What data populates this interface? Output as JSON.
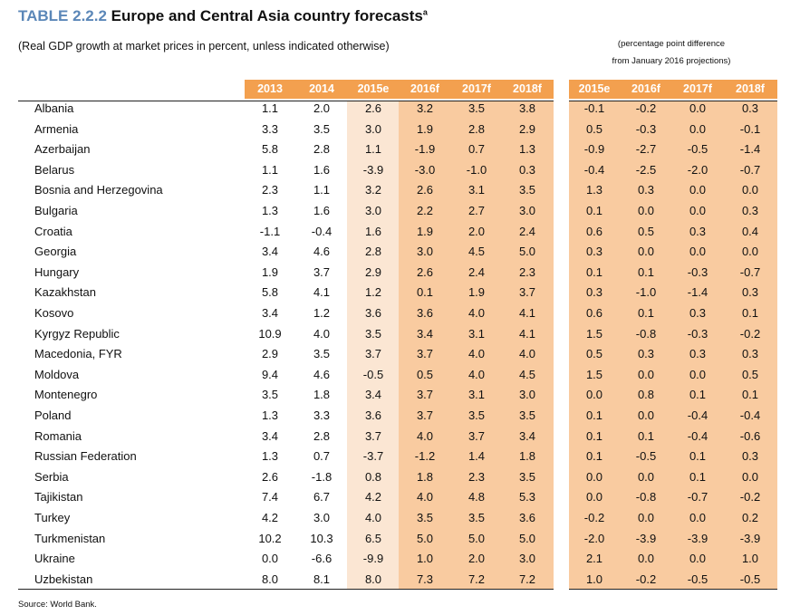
{
  "title": {
    "number": "TABLE 2.2.2",
    "text": "Europe and Central Asia country forecasts",
    "footnote_mark": "a"
  },
  "subtitle": "(Real GDP growth at market prices in percent, unless indicated otherwise)",
  "diff_note": {
    "line1": "(percentage  point difference",
    "line2": "from January 2016 projections)"
  },
  "columns": [
    "2013",
    "2014",
    "2015e",
    "2016f",
    "2017f",
    "2018f"
  ],
  "diff_columns": [
    "2015e",
    "2016f",
    "2017f",
    "2018f"
  ],
  "rows": [
    {
      "country": "Albania",
      "values": [
        "1.1",
        "2.0",
        "2.6",
        "3.2",
        "3.5",
        "3.8"
      ],
      "diffs": [
        "-0.1",
        "-0.2",
        "0.0",
        "0.3"
      ]
    },
    {
      "country": "Armenia",
      "values": [
        "3.3",
        "3.5",
        "3.0",
        "1.9",
        "2.8",
        "2.9"
      ],
      "diffs": [
        "0.5",
        "-0.3",
        "0.0",
        "-0.1"
      ]
    },
    {
      "country": "Azerbaijan",
      "values": [
        "5.8",
        "2.8",
        "1.1",
        "-1.9",
        "0.7",
        "1.3"
      ],
      "diffs": [
        "-0.9",
        "-2.7",
        "-0.5",
        "-1.4"
      ]
    },
    {
      "country": "Belarus",
      "values": [
        "1.1",
        "1.6",
        "-3.9",
        "-3.0",
        "-1.0",
        "0.3"
      ],
      "diffs": [
        "-0.4",
        "-2.5",
        "-2.0",
        "-0.7"
      ]
    },
    {
      "country": "Bosnia and Herzegovina",
      "values": [
        "2.3",
        "1.1",
        "3.2",
        "2.6",
        "3.1",
        "3.5"
      ],
      "diffs": [
        "1.3",
        "0.3",
        "0.0",
        "0.0"
      ]
    },
    {
      "country": "Bulgaria",
      "values": [
        "1.3",
        "1.6",
        "3.0",
        "2.2",
        "2.7",
        "3.0"
      ],
      "diffs": [
        "0.1",
        "0.0",
        "0.0",
        "0.3"
      ]
    },
    {
      "country": "Croatia",
      "values": [
        "-1.1",
        "-0.4",
        "1.6",
        "1.9",
        "2.0",
        "2.4"
      ],
      "diffs": [
        "0.6",
        "0.5",
        "0.3",
        "0.4"
      ]
    },
    {
      "country": "Georgia",
      "values": [
        "3.4",
        "4.6",
        "2.8",
        "3.0",
        "4.5",
        "5.0"
      ],
      "diffs": [
        "0.3",
        "0.0",
        "0.0",
        "0.0"
      ]
    },
    {
      "country": "Hungary",
      "values": [
        "1.9",
        "3.7",
        "2.9",
        "2.6",
        "2.4",
        "2.3"
      ],
      "diffs": [
        "0.1",
        "0.1",
        "-0.3",
        "-0.7"
      ]
    },
    {
      "country": "Kazakhstan",
      "values": [
        "5.8",
        "4.1",
        "1.2",
        "0.1",
        "1.9",
        "3.7"
      ],
      "diffs": [
        "0.3",
        "-1.0",
        "-1.4",
        "0.3"
      ]
    },
    {
      "country": "Kosovo",
      "values": [
        "3.4",
        "1.2",
        "3.6",
        "3.6",
        "4.0",
        "4.1"
      ],
      "diffs": [
        "0.6",
        "0.1",
        "0.3",
        "0.1"
      ]
    },
    {
      "country": "Kyrgyz Republic",
      "values": [
        "10.9",
        "4.0",
        "3.5",
        "3.4",
        "3.1",
        "4.1"
      ],
      "diffs": [
        "1.5",
        "-0.8",
        "-0.3",
        "-0.2"
      ]
    },
    {
      "country": "Macedonia, FYR",
      "values": [
        "2.9",
        "3.5",
        "3.7",
        "3.7",
        "4.0",
        "4.0"
      ],
      "diffs": [
        "0.5",
        "0.3",
        "0.3",
        "0.3"
      ]
    },
    {
      "country": "Moldova",
      "values": [
        "9.4",
        "4.6",
        "-0.5",
        "0.5",
        "4.0",
        "4.5"
      ],
      "diffs": [
        "1.5",
        "0.0",
        "0.0",
        "0.5"
      ]
    },
    {
      "country": "Montenegro",
      "values": [
        "3.5",
        "1.8",
        "3.4",
        "3.7",
        "3.1",
        "3.0"
      ],
      "diffs": [
        "0.0",
        "0.8",
        "0.1",
        "0.1"
      ]
    },
    {
      "country": "Poland",
      "values": [
        "1.3",
        "3.3",
        "3.6",
        "3.7",
        "3.5",
        "3.5"
      ],
      "diffs": [
        "0.1",
        "0.0",
        "-0.4",
        "-0.4"
      ]
    },
    {
      "country": "Romania",
      "values": [
        "3.4",
        "2.8",
        "3.7",
        "4.0",
        "3.7",
        "3.4"
      ],
      "diffs": [
        "0.1",
        "0.1",
        "-0.4",
        "-0.6"
      ]
    },
    {
      "country": "Russian Federation",
      "values": [
        "1.3",
        "0.7",
        "-3.7",
        "-1.2",
        "1.4",
        "1.8"
      ],
      "diffs": [
        "0.1",
        "-0.5",
        "0.1",
        "0.3"
      ]
    },
    {
      "country": "Serbia",
      "values": [
        "2.6",
        "-1.8",
        "0.8",
        "1.8",
        "2.3",
        "3.5"
      ],
      "diffs": [
        "0.0",
        "0.0",
        "0.1",
        "0.0"
      ]
    },
    {
      "country": "Tajikistan",
      "values": [
        "7.4",
        "6.7",
        "4.2",
        "4.0",
        "4.8",
        "5.3"
      ],
      "diffs": [
        "0.0",
        "-0.8",
        "-0.7",
        "-0.2"
      ]
    },
    {
      "country": "Turkey",
      "values": [
        "4.2",
        "3.0",
        "4.0",
        "3.5",
        "3.5",
        "3.6"
      ],
      "diffs": [
        "-0.2",
        "0.0",
        "0.0",
        "0.2"
      ]
    },
    {
      "country": "Turkmenistan",
      "values": [
        "10.2",
        "10.3",
        "6.5",
        "5.0",
        "5.0",
        "5.0"
      ],
      "diffs": [
        "-2.0",
        "-3.9",
        "-3.9",
        "-3.9"
      ]
    },
    {
      "country": "Ukraine",
      "values": [
        "0.0",
        "-6.6",
        "-9.9",
        "1.0",
        "2.0",
        "3.0"
      ],
      "diffs": [
        "2.1",
        "0.0",
        "0.0",
        "1.0"
      ]
    },
    {
      "country": "Uzbekistan",
      "values": [
        "8.0",
        "8.1",
        "8.0",
        "7.3",
        "7.2",
        "7.2"
      ],
      "diffs": [
        "1.0",
        "-0.2",
        "-0.5",
        "-0.5"
      ]
    }
  ],
  "source": "Source: World Bank.",
  "colors": {
    "title_number": "#5b87b8",
    "header": "#f3a04f",
    "estimate_shade": "#fbe6d3",
    "forecast_shade": "#f9cba0",
    "diff_shade": "#f9cba0"
  }
}
